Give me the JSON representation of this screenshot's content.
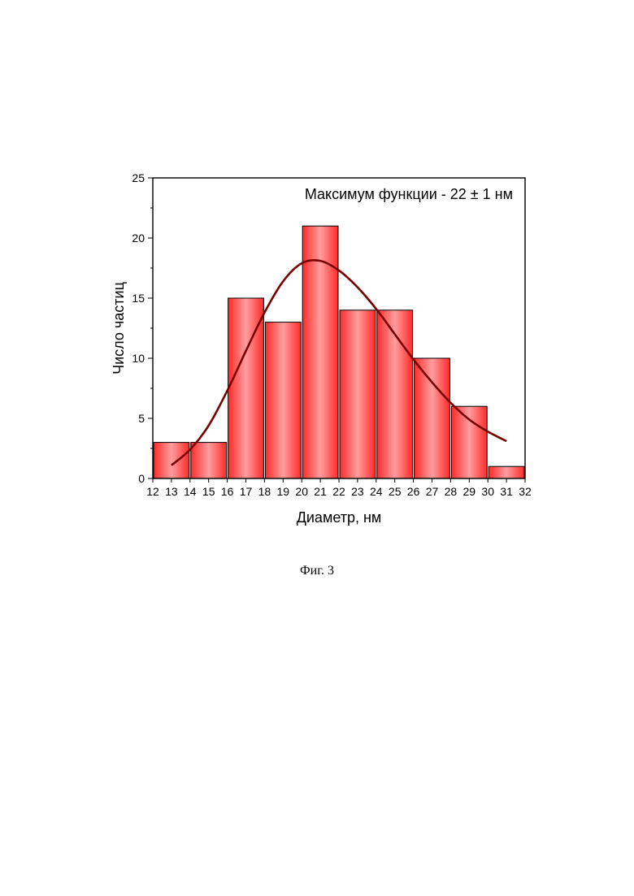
{
  "caption": "Фиг. 3",
  "colors": {
    "bar_edge": "#ff2a2a",
    "bar_center": "#ff9e9e",
    "bar_stroke": "#000000",
    "fit_line": "#7a0000"
  },
  "chart_data": {
    "type": "bar",
    "subtype": "histogram",
    "xlabel": "Диаметр, нм",
    "ylabel": "Число частиц",
    "annotation": "Максимум функции - 22 ± 1 нм",
    "xlim": [
      12,
      32
    ],
    "ylim": [
      0,
      25
    ],
    "x_ticks": [
      12,
      13,
      14,
      15,
      16,
      17,
      18,
      19,
      20,
      21,
      22,
      23,
      24,
      25,
      26,
      27,
      28,
      29,
      30,
      31,
      32
    ],
    "y_ticks": [
      0,
      5,
      10,
      15,
      20,
      25
    ],
    "bins": [
      {
        "from": 12,
        "to": 14,
        "value": 3
      },
      {
        "from": 14,
        "to": 16,
        "value": 3
      },
      {
        "from": 16,
        "to": 18,
        "value": 15
      },
      {
        "from": 18,
        "to": 20,
        "value": 13
      },
      {
        "from": 20,
        "to": 22,
        "value": 21
      },
      {
        "from": 22,
        "to": 24,
        "value": 14
      },
      {
        "from": 24,
        "to": 26,
        "value": 14
      },
      {
        "from": 26,
        "to": 28,
        "value": 10
      },
      {
        "from": 28,
        "to": 30,
        "value": 6
      },
      {
        "from": 30,
        "to": 32,
        "value": 1
      }
    ],
    "fit": {
      "type": "gaussian",
      "x": [
        13,
        14,
        15,
        16,
        17,
        18,
        19,
        20,
        21,
        22,
        23,
        24,
        25,
        26,
        27,
        28,
        29,
        30,
        31
      ],
      "y": [
        1.1,
        2.4,
        4.4,
        7.3,
        10.6,
        13.8,
        16.4,
        17.9,
        18.1,
        17.3,
        15.9,
        14.1,
        12.0,
        9.9,
        8.0,
        6.3,
        4.9,
        3.9,
        3.1
      ]
    },
    "grid": false,
    "legend": "none"
  }
}
